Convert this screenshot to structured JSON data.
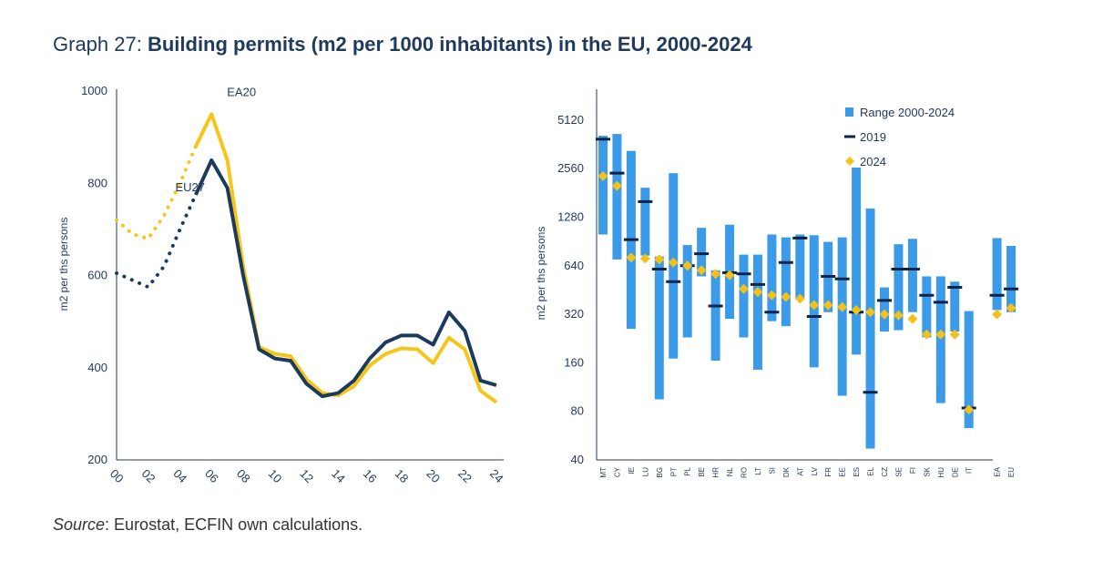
{
  "title": {
    "prefix": "Graph 27: ",
    "main": "Building permits (m2 per 1000 inhabitants) in the EU, 2000-2024"
  },
  "source": {
    "label": "Source",
    "text": ": Eurostat, ECFIN own calculations."
  },
  "colors": {
    "ea20": "#f5c518",
    "eu27": "#1b3a5c",
    "range": "#3b9be8",
    "marker2019": "#0e2349",
    "marker2024": "#f2c21b",
    "axis": "#1f3a5c"
  },
  "chart_data": [
    {
      "type": "line",
      "ylabel": "m2 per ths persons",
      "ylim": [
        200,
        1000
      ],
      "yticks": [
        "200",
        "400",
        "600",
        "800",
        "1000"
      ],
      "x_ticks": [
        "00",
        "02",
        "04",
        "06",
        "08",
        "10",
        "12",
        "14",
        "16",
        "18",
        "20",
        "22",
        "24"
      ],
      "years": [
        2000,
        2001,
        2002,
        2003,
        2004,
        2005,
        2006,
        2007,
        2008,
        2009,
        2010,
        2011,
        2012,
        2013,
        2014,
        2015,
        2016,
        2017,
        2018,
        2019,
        2020,
        2021,
        2022,
        2023,
        2024
      ],
      "dotted_until": 2005,
      "series": [
        {
          "name": "EA20",
          "color": "#f5c518",
          "values": [
            720,
            690,
            680,
            730,
            800,
            880,
            950,
            850,
            620,
            445,
            430,
            425,
            375,
            345,
            340,
            360,
            405,
            430,
            442,
            440,
            410,
            465,
            440,
            350,
            325
          ]
        },
        {
          "name": "EU27",
          "color": "#1b3a5c",
          "values": [
            605,
            590,
            575,
            620,
            700,
            775,
            850,
            790,
            600,
            440,
            420,
            415,
            365,
            338,
            345,
            372,
            420,
            455,
            470,
            470,
            450,
            520,
            480,
            372,
            362
          ]
        }
      ]
    },
    {
      "type": "range",
      "ylabel": "m2 per ths persons",
      "scale": "log2",
      "ylim": [
        40,
        10240
      ],
      "yticks": [
        "40",
        "80",
        "160",
        "320",
        "640",
        "1280",
        "2560",
        "5120"
      ],
      "legend": [
        "Range 2000-2024",
        "2019",
        "2024"
      ],
      "categories": [
        "MT",
        "CY",
        "IE",
        "LU",
        "BG",
        "PT",
        "PL",
        "BE",
        "HR",
        "NL",
        "RO",
        "LT",
        "SI",
        "DK",
        "AT",
        "LV",
        "FR",
        "EE",
        "ES",
        "EL",
        "CZ",
        "SE",
        "FI",
        "SK",
        "HU",
        "DE",
        "IT",
        "",
        "EA",
        "EU"
      ],
      "range_min": [
        1000,
        700,
        260,
        740,
        95,
        170,
        230,
        550,
        165,
        300,
        230,
        145,
        290,
        270,
        400,
        150,
        330,
        100,
        180,
        47,
        250,
        255,
        330,
        230,
        90,
        250,
        63,
        null,
        340,
        330
      ],
      "range_max": [
        4100,
        4200,
        3300,
        1950,
        730,
        2400,
        860,
        1100,
        600,
        1150,
        750,
        750,
        1000,
        960,
        1000,
        990,
        900,
        960,
        2600,
        1450,
        470,
        870,
        940,
        550,
        550,
        510,
        335,
        null,
        950,
        850
      ],
      "values_2019": [
        3900,
        2400,
        930,
        1600,
        610,
        510,
        640,
        760,
        360,
        580,
        570,
        490,
        330,
        670,
        950,
        310,
        550,
        530,
        330,
        105,
        390,
        610,
        610,
        420,
        380,
        470,
        84,
        null,
        420,
        460
      ],
      "values_2024": [
        2300,
        2000,
        720,
        710,
        700,
        670,
        640,
        600,
        570,
        560,
        460,
        440,
        420,
        410,
        400,
        365,
        365,
        355,
        340,
        330,
        320,
        315,
        300,
        240,
        240,
        240,
        82,
        null,
        320,
        350
      ]
    }
  ]
}
